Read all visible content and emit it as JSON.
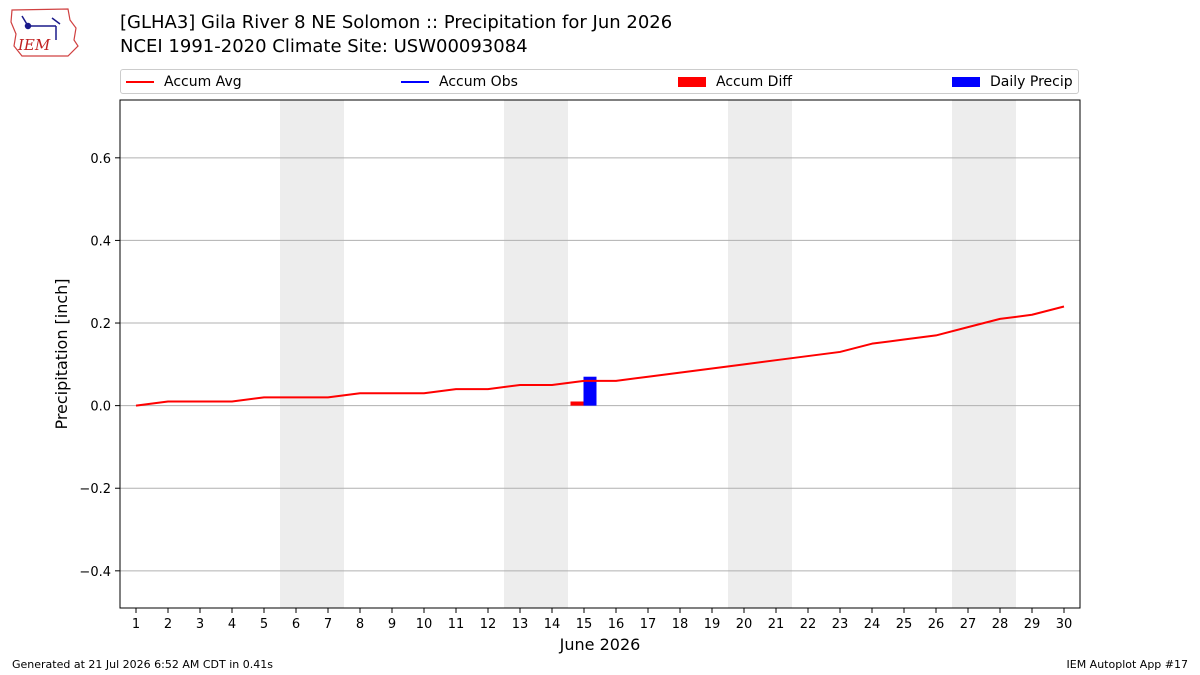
{
  "header": {
    "title_line1": "[GLHA3] Gila River 8 NE Solomon :: Precipitation for Jun 2026",
    "title_line2": "NCEI 1991-2020 Climate Site: USW00093084",
    "logo_text": "IEM"
  },
  "legend": {
    "items": [
      {
        "label": "Accum Avg",
        "kind": "line",
        "color": "#ff0000"
      },
      {
        "label": "Accum Obs",
        "kind": "line",
        "color": "#0000ff"
      },
      {
        "label": "Accum Diff",
        "kind": "box",
        "color": "#ff0000"
      },
      {
        "label": "Daily Precip",
        "kind": "box",
        "color": "#0000ff"
      }
    ]
  },
  "footer": {
    "generated": "Generated at 21 Jul 2026 6:52 AM CDT in 0.41s",
    "app": "IEM Autoplot App #17"
  },
  "chart_data": {
    "type": "line",
    "title": "[GLHA3] Gila River 8 NE Solomon :: Precipitation for Jun 2026",
    "xlabel": "June 2026",
    "ylabel": "Precipitation [inch]",
    "x": [
      1,
      2,
      3,
      4,
      5,
      6,
      7,
      8,
      9,
      10,
      11,
      12,
      13,
      14,
      15,
      16,
      17,
      18,
      19,
      20,
      21,
      22,
      23,
      24,
      25,
      26,
      27,
      28,
      29,
      30
    ],
    "xlim": [
      0.5,
      30.5
    ],
    "ylim": [
      -0.49,
      0.74
    ],
    "yticks": [
      -0.4,
      -0.2,
      0.0,
      0.2,
      0.4,
      0.6
    ],
    "ytick_labels": [
      "−0.4",
      "−0.2",
      "0.0",
      "0.2",
      "0.4",
      "0.6"
    ],
    "grid": true,
    "weekend_bands": [
      [
        5.5,
        7.5
      ],
      [
        12.5,
        14.5
      ],
      [
        19.5,
        21.5
      ],
      [
        26.5,
        28.5
      ]
    ],
    "series": [
      {
        "name": "Accum Avg",
        "kind": "line",
        "color": "#ff0000",
        "values": [
          0.0,
          0.01,
          0.01,
          0.01,
          0.02,
          0.02,
          0.02,
          0.03,
          0.03,
          0.03,
          0.04,
          0.04,
          0.05,
          0.05,
          0.06,
          0.06,
          0.07,
          0.08,
          0.09,
          0.1,
          0.11,
          0.12,
          0.13,
          0.15,
          0.16,
          0.17,
          0.19,
          0.21,
          0.22,
          0.24
        ]
      },
      {
        "name": "Accum Diff",
        "kind": "bar",
        "color": "#ff0000",
        "points": [
          {
            "x": 15,
            "value": 0.01
          }
        ]
      },
      {
        "name": "Daily Precip",
        "kind": "bar",
        "color": "#0000ff",
        "points": [
          {
            "x": 15,
            "value": 0.07
          }
        ]
      }
    ]
  }
}
